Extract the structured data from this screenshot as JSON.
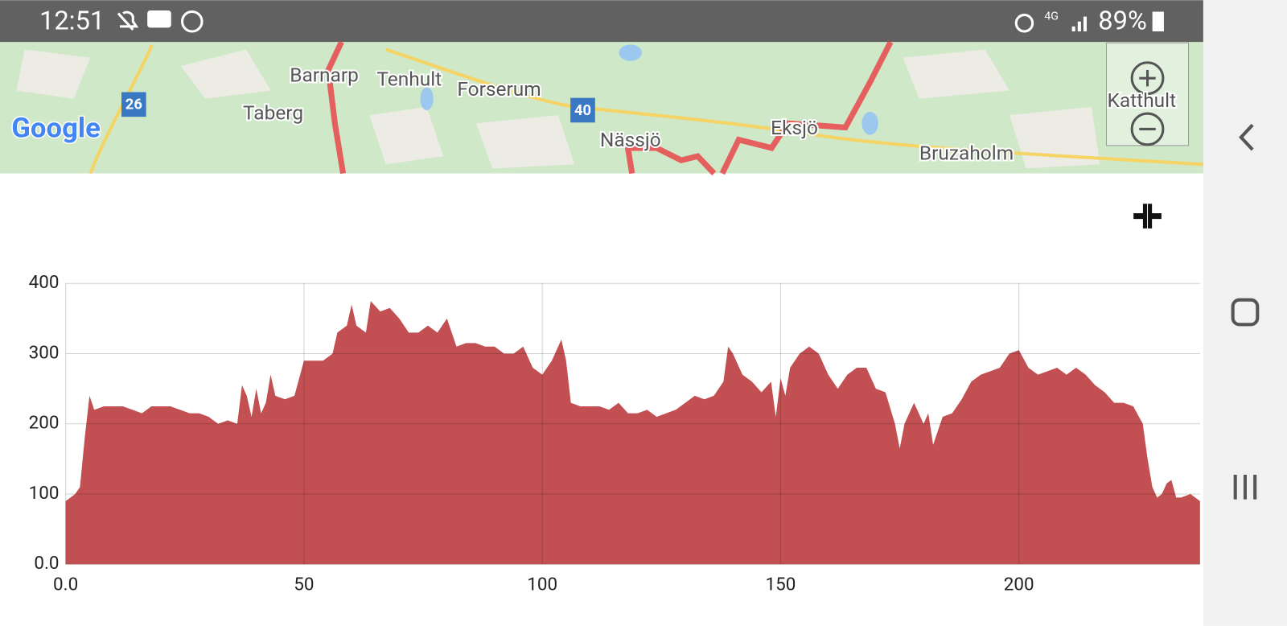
{
  "status_bar": {
    "time": "12:51",
    "network": "4G",
    "battery": "89%"
  },
  "map": {
    "labels": [
      "Barnarp",
      "Tenhult",
      "Forserum",
      "Taberg",
      "Nässjö",
      "Eksjö",
      "Bruzaholm",
      "Katthult"
    ],
    "road_shields": [
      "26",
      "40"
    ],
    "logo": "Google"
  },
  "chart_data": {
    "type": "area",
    "color": "#c25052",
    "grid": true,
    "x": [
      0,
      2,
      3,
      4,
      5,
      6,
      8,
      10,
      12,
      14,
      16,
      18,
      20,
      22,
      24,
      26,
      28,
      30,
      32,
      34,
      36,
      37,
      38,
      39,
      40,
      41,
      42,
      43,
      44,
      46,
      48,
      50,
      52,
      54,
      56,
      57,
      59,
      60,
      61,
      63,
      64,
      66,
      68,
      70,
      72,
      74,
      76,
      78,
      80,
      82,
      84,
      86,
      88,
      90,
      92,
      94,
      96,
      98,
      100,
      102,
      104,
      105,
      106,
      108,
      110,
      112,
      114,
      116,
      118,
      120,
      122,
      124,
      126,
      128,
      130,
      132,
      134,
      136,
      138,
      139,
      140,
      142,
      144,
      146,
      148,
      149,
      150,
      151,
      152,
      154,
      156,
      158,
      160,
      162,
      164,
      166,
      168,
      170,
      172,
      174,
      175,
      176,
      178,
      180,
      181,
      182,
      184,
      186,
      188,
      190,
      192,
      194,
      196,
      198,
      200,
      202,
      204,
      206,
      208,
      210,
      212,
      214,
      216,
      218,
      220,
      222,
      224,
      226,
      227,
      228,
      229,
      230,
      231,
      232,
      233,
      234,
      236,
      238
    ],
    "values": [
      90,
      100,
      110,
      180,
      240,
      220,
      225,
      225,
      225,
      220,
      215,
      225,
      225,
      225,
      220,
      215,
      215,
      210,
      200,
      205,
      200,
      255,
      240,
      210,
      250,
      215,
      230,
      270,
      240,
      235,
      240,
      290,
      290,
      290,
      300,
      330,
      340,
      370,
      340,
      330,
      375,
      360,
      365,
      350,
      330,
      330,
      340,
      330,
      350,
      310,
      315,
      315,
      310,
      310,
      300,
      300,
      310,
      280,
      270,
      290,
      320,
      290,
      230,
      225,
      225,
      225,
      220,
      230,
      215,
      215,
      220,
      210,
      215,
      220,
      230,
      240,
      235,
      240,
      260,
      310,
      300,
      270,
      260,
      245,
      260,
      210,
      265,
      240,
      280,
      300,
      310,
      300,
      270,
      250,
      270,
      280,
      280,
      250,
      245,
      200,
      165,
      200,
      230,
      200,
      215,
      170,
      210,
      215,
      235,
      260,
      270,
      275,
      280,
      300,
      305,
      280,
      270,
      275,
      280,
      270,
      280,
      270,
      255,
      245,
      230,
      230,
      225,
      200,
      150,
      110,
      95,
      100,
      115,
      120,
      95,
      95,
      100,
      90
    ],
    "xlim": [
      0,
      238
    ],
    "ylim": [
      0,
      400
    ],
    "xticks": [
      {
        "value": 0,
        "label": "0.0"
      },
      50,
      100,
      150,
      200
    ],
    "yticks": [
      {
        "value": 0,
        "label": "0.0"
      },
      100,
      200,
      300,
      400
    ]
  }
}
